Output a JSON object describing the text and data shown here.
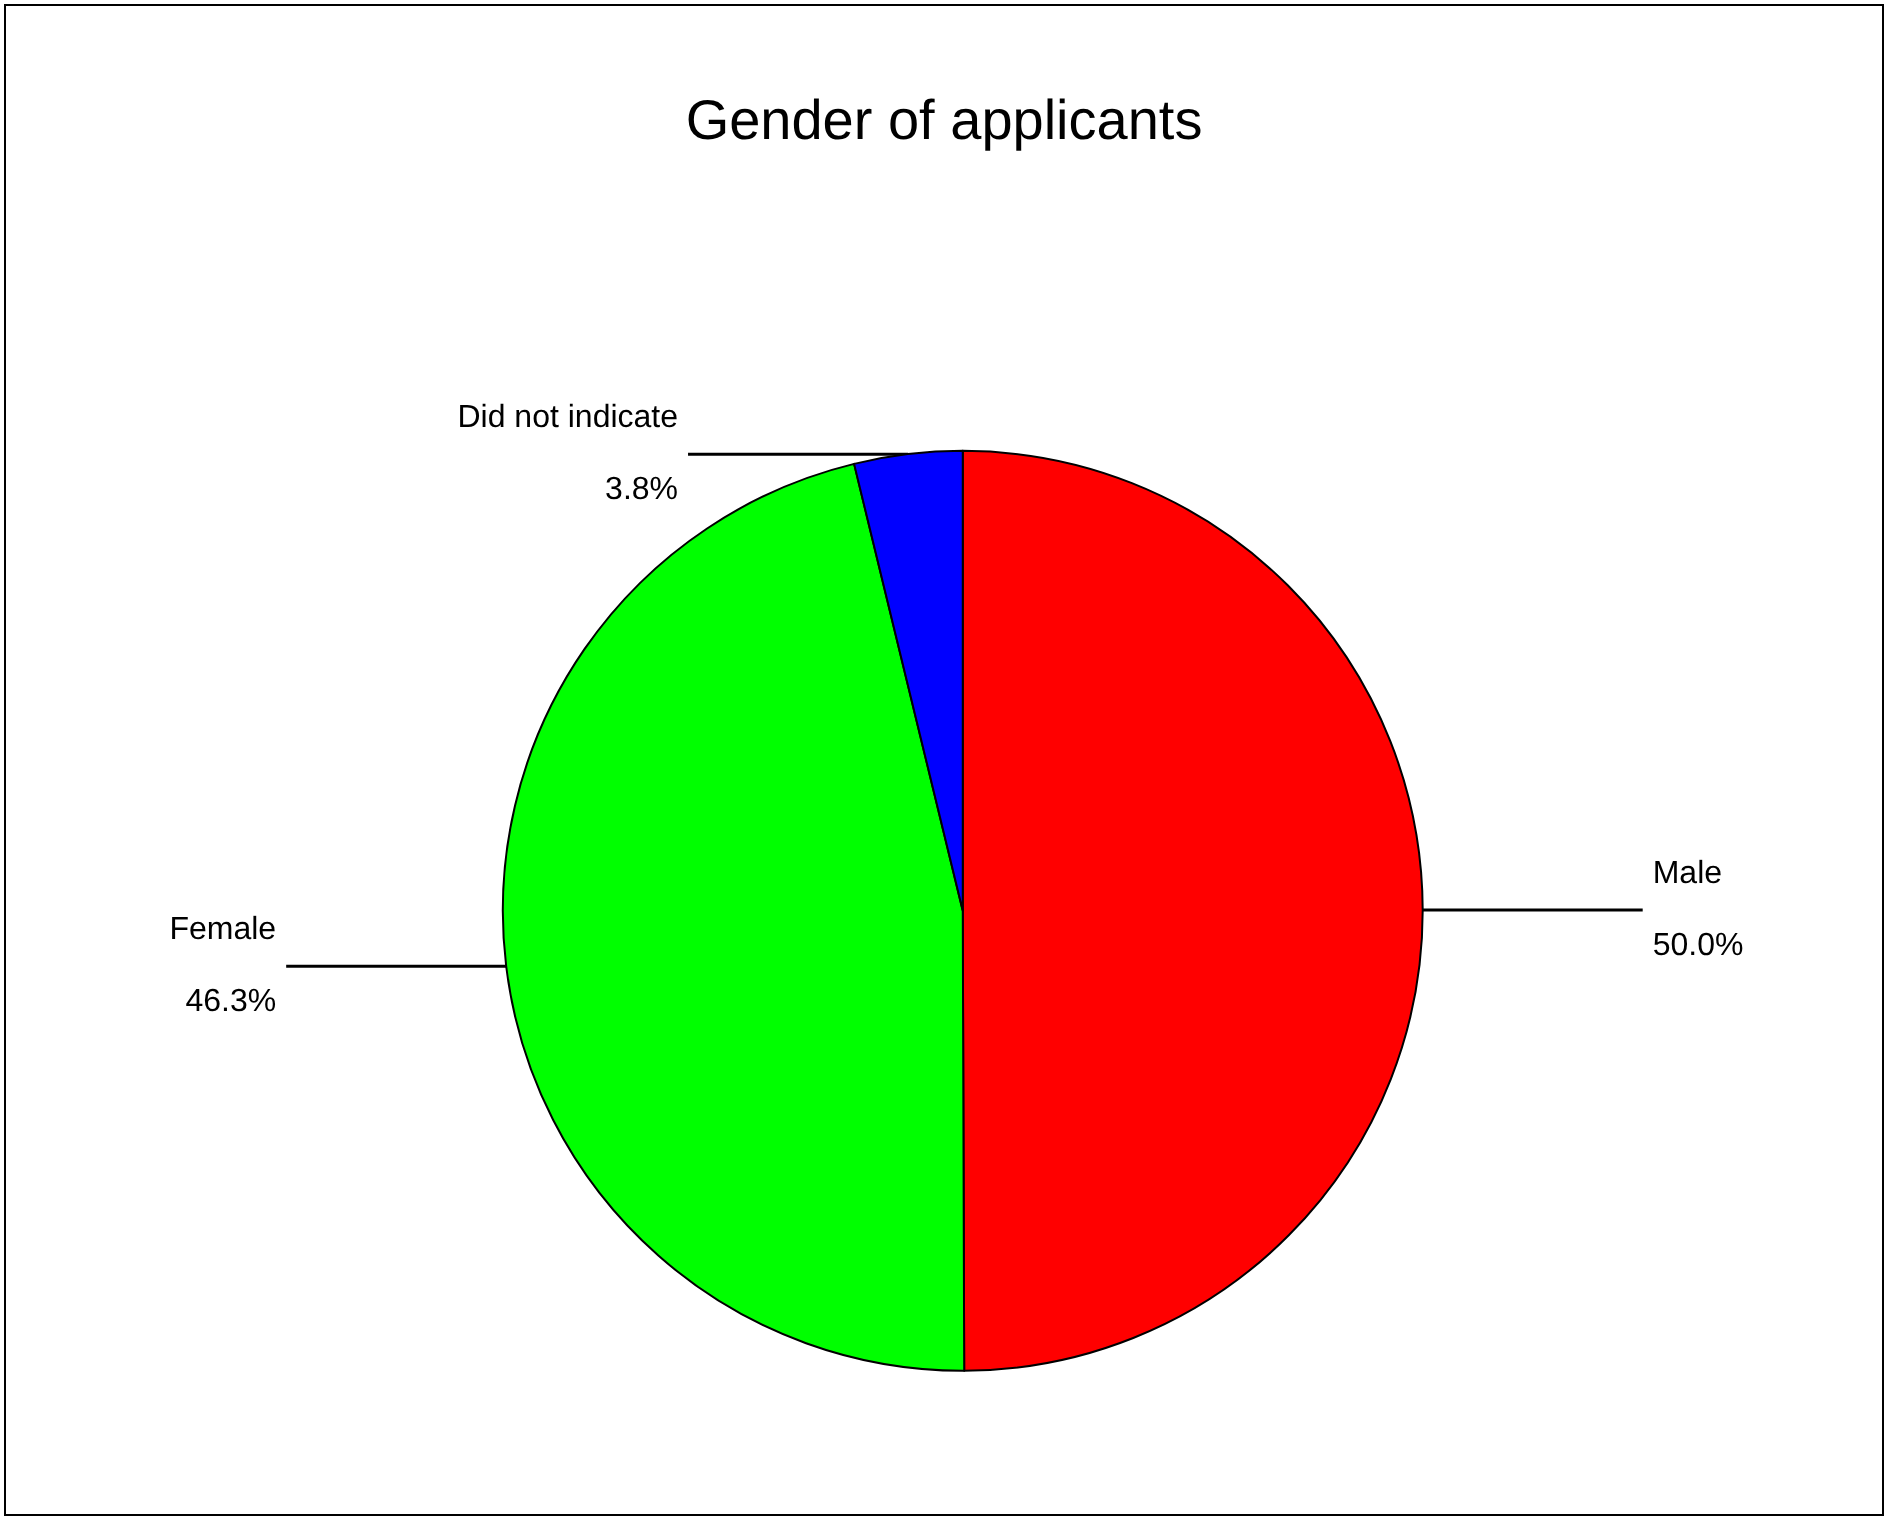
{
  "chart_data": {
    "type": "pie",
    "title": "Gender of applicants",
    "categories": [
      "Male",
      "Female",
      "Did not indicate"
    ],
    "values": [
      50.0,
      46.3,
      3.8
    ],
    "value_labels": [
      "50.0%",
      "46.3%",
      "3.8%"
    ],
    "colors": [
      "#ff0000",
      "#00ff00",
      "#0000ff"
    ],
    "legend": false
  }
}
